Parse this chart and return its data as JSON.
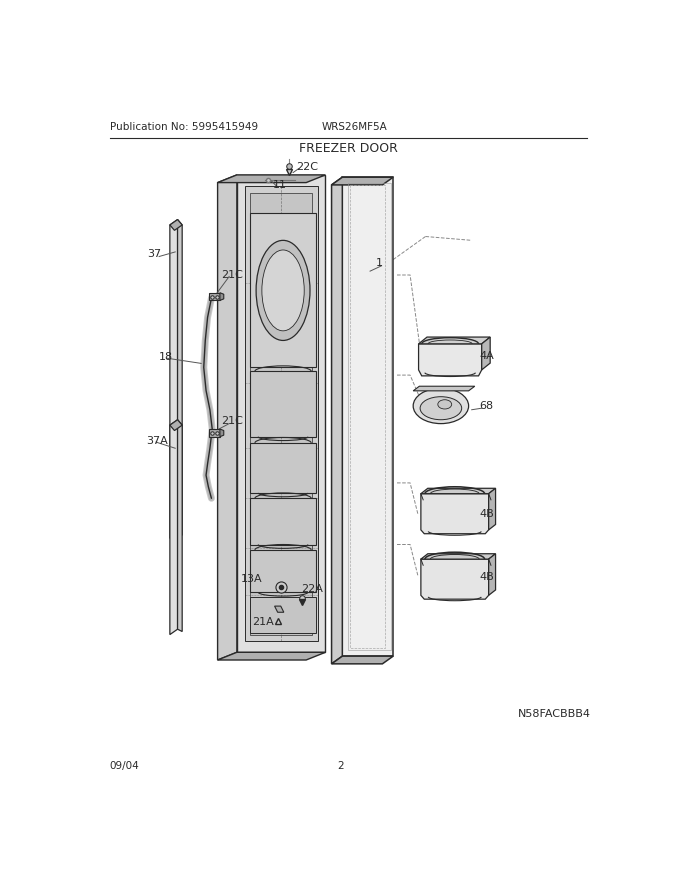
{
  "title": "FREEZER DOOR",
  "pub_no": "Publication No: 5995415949",
  "model": "WRS26MF5A",
  "image_code": "N58FACBBB4",
  "date": "09/04",
  "page": "2",
  "bg": "#ffffff",
  "lc": "#2a2a2a",
  "gray1": "#cccccc",
  "gray2": "#e0e0e0",
  "gray3": "#b0b0b0",
  "gray4": "#f0f0f0",
  "gray5": "#d8d8d8"
}
